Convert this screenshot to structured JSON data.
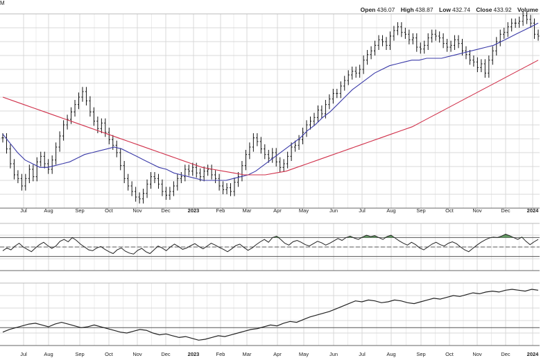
{
  "header": {
    "corner_text": "M",
    "open_label": "Open",
    "open_value": "436.07",
    "high_label": "High",
    "high_value": "438.87",
    "low_label": "Low",
    "low_value": "432.74",
    "close_label": "Close",
    "close_value": "433.92",
    "volume_label": "Volume"
  },
  "colors": {
    "price_bars": "#111111",
    "ma_short": "#3a3aa8",
    "ma_long": "#d0304a",
    "rsi_line": "#222222",
    "rsi_overbought_fill": "#4a8a4a",
    "grid": "#d8d8d8",
    "panel_border": "#666666"
  },
  "chart_data": {
    "type": "line",
    "x_tick_labels": [
      "Jul",
      "Aug",
      "Sep",
      "Oct",
      "Nov",
      "Dec",
      "2023",
      "Feb",
      "Mar",
      "Apr",
      "May",
      "Jun",
      "Jul",
      "Aug",
      "Sep",
      "Oct",
      "Nov",
      "Dec",
      "2024"
    ],
    "bold_tick_labels": [
      "2023",
      "2024"
    ],
    "panels": [
      {
        "name": "price",
        "type": "ohlc",
        "y_range": [
          340,
          445
        ],
        "close": [
          378,
          372,
          364,
          358,
          356,
          352,
          356,
          361,
          357,
          365,
          368,
          364,
          361,
          366,
          373,
          379,
          385,
          388,
          392,
          396,
          400,
          403,
          398,
          392,
          387,
          383,
          386,
          381,
          377,
          374,
          370,
          363,
          356,
          352,
          349,
          346,
          345,
          348,
          353,
          357,
          356,
          353,
          349,
          347,
          349,
          352,
          356,
          357,
          361,
          360,
          362,
          359,
          357,
          360,
          361,
          358,
          356,
          352,
          350,
          351,
          349,
          354,
          357,
          363,
          369,
          373,
          378,
          376,
          372,
          369,
          367,
          370,
          365,
          362,
          364,
          368,
          373,
          374,
          377,
          381,
          385,
          387,
          389,
          393,
          391,
          396,
          399,
          402,
          402,
          406,
          409,
          412,
          414,
          413,
          415,
          420,
          423,
          425,
          428,
          431,
          430,
          428,
          433,
          436,
          438,
          435,
          434,
          431,
          432,
          427,
          426,
          428,
          432,
          434,
          433,
          432,
          429,
          427,
          428,
          431,
          429,
          425,
          423,
          420,
          419,
          416,
          418,
          413,
          420,
          425,
          430,
          434,
          435,
          438,
          440,
          440,
          441,
          444,
          442,
          440,
          434,
          433
        ],
        "series": [
          {
            "name": "",
            "color_key": "ma_short",
            "values": [
              380,
              375,
              370,
              366,
              364,
              362,
              362,
              363,
              364,
              365,
              367,
              369,
              370,
              371,
              372,
              373,
              372,
              370,
              368,
              366,
              364,
              362,
              361,
              359,
              358,
              357,
              356,
              355,
              355,
              355,
              355,
              356,
              357,
              358,
              360,
              363,
              366,
              369,
              372,
              375,
              378,
              382,
              385,
              389,
              392,
              396,
              400,
              404,
              407,
              410,
              413,
              415,
              417,
              418,
              419,
              420,
              420,
              421,
              421,
              421,
              422,
              423,
              424,
              425,
              426,
              427,
              428,
              430,
              432,
              434,
              436,
              438,
              440
            ]
          },
          {
            "name": "",
            "color_key": "ma_long",
            "values": [
              400,
              398,
              396,
              394,
              392,
              390,
              388,
              386,
              384,
              382,
              380,
              378,
              376,
              374,
              372,
              370,
              368,
              366,
              364,
              362,
              361,
              360,
              359,
              358,
              358,
              358,
              359,
              360,
              362,
              364,
              366,
              368,
              370,
              372,
              374,
              376,
              378,
              380,
              382,
              384,
              387,
              390,
              393,
              396,
              399,
              402,
              405,
              408,
              411,
              414,
              417,
              420
            ]
          }
        ]
      },
      {
        "name": "momentum",
        "type": "line",
        "y_range": [
          0,
          100
        ],
        "reference_lines": [
          70,
          50,
          30
        ],
        "values": [
          42,
          48,
          44,
          52,
          58,
          50,
          45,
          40,
          48,
          55,
          60,
          53,
          47,
          52,
          62,
          66,
          61,
          70,
          64,
          56,
          50,
          44,
          42,
          48,
          51,
          45,
          40,
          36,
          44,
          48,
          41,
          37,
          35,
          43,
          47,
          40,
          36,
          44,
          52,
          48,
          42,
          50,
          56,
          51,
          45,
          48,
          53,
          57,
          51,
          46,
          52,
          58,
          54,
          49,
          45,
          40,
          46,
          53,
          56,
          49,
          43,
          48,
          55,
          61,
          66,
          60,
          70,
          73,
          66,
          58,
          54,
          61,
          64,
          60,
          55,
          52,
          57,
          62,
          59,
          54,
          58,
          63,
          68,
          64,
          70,
          73,
          69,
          66,
          71,
          75,
          72,
          74,
          70,
          66,
          72,
          75,
          69,
          63,
          58,
          54,
          60,
          55,
          48,
          44,
          50,
          56,
          60,
          55,
          52,
          58,
          61,
          57,
          50,
          44,
          40,
          47,
          54,
          60,
          65,
          69,
          71,
          70,
          73,
          77,
          74,
          70,
          66,
          71,
          62,
          55,
          61,
          66
        ]
      },
      {
        "name": "relative-strength",
        "type": "line",
        "values": [
          15,
          18,
          20,
          22,
          24,
          25,
          23,
          21,
          24,
          26,
          24,
          22,
          20,
          21,
          23,
          21,
          19,
          17,
          15,
          14,
          16,
          18,
          17,
          14,
          12,
          13,
          11,
          9,
          10,
          8,
          6,
          7,
          9,
          11,
          10,
          12,
          14,
          16,
          18,
          19,
          21,
          23,
          22,
          25,
          27,
          26,
          29,
          32,
          34,
          36,
          38,
          41,
          44,
          47,
          50,
          49,
          51,
          50,
          48,
          49,
          51,
          50,
          48,
          47,
          49,
          51,
          53,
          52,
          54,
          56,
          55,
          57,
          59,
          58,
          60,
          61,
          60,
          62,
          63,
          62,
          61,
          63,
          62
        ]
      }
    ]
  }
}
